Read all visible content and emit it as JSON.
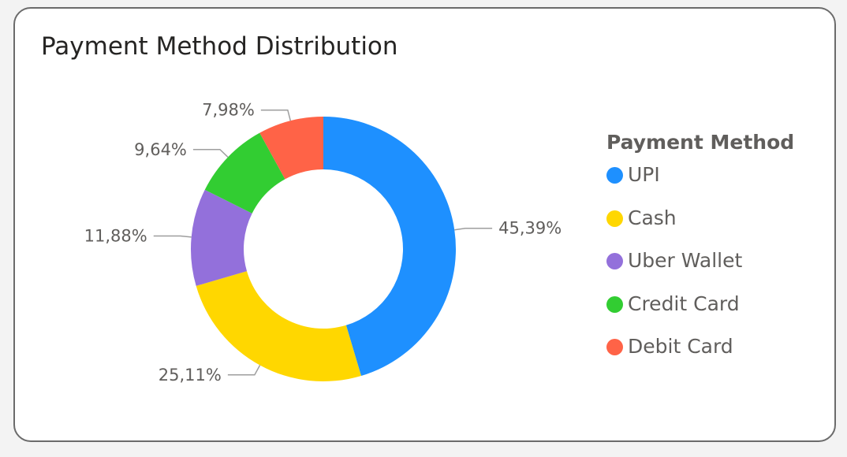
{
  "title": "Payment Method Distribution",
  "chart_data": {
    "type": "pie",
    "subtype": "donut",
    "title": "Payment Method Distribution",
    "legend_title": "Payment Method",
    "legend_position": "right",
    "categories": [
      "UPI",
      "Cash",
      "Uber Wallet",
      "Credit Card",
      "Debit Card"
    ],
    "values": [
      45.39,
      25.11,
      11.88,
      9.64,
      7.98
    ],
    "labels": [
      "45,39%",
      "25,11%",
      "11,88%",
      "9,64%",
      "7,98%"
    ],
    "colors": [
      "#1e90ff",
      "#ffd700",
      "#9370db",
      "#32cd32",
      "#ff6347"
    ]
  }
}
